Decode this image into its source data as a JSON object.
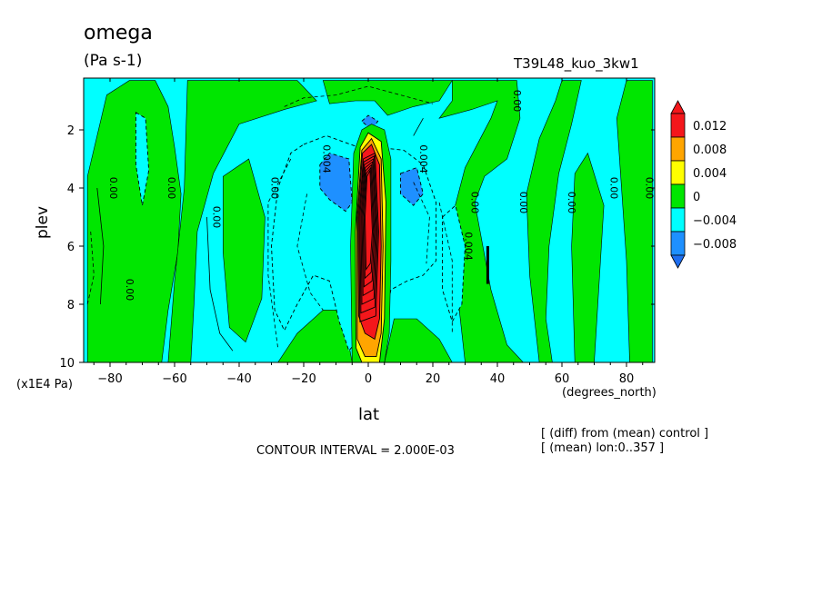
{
  "header": {
    "title": "omega",
    "units": "(Pa s-1)",
    "run_name": "T39L48_kuo_3kw1"
  },
  "footer": {
    "contour_interval": "CONTOUR INTERVAL = 2.000E-03",
    "note_diff": "[ (diff) from (mean) control ]",
    "note_mean": "[ (mean) lon:0..357 ]"
  },
  "chart_data": {
    "type": "heatmap",
    "title": "omega",
    "units": "(Pa s-1)",
    "xlabel": "lat",
    "xunits": "(degrees_north)",
    "ylabel": "plev",
    "yunits": "(x1E4 Pa)",
    "xlim": [
      -88,
      88
    ],
    "ylim": [
      10,
      0.3
    ],
    "y_inverted": true,
    "xticks": [
      -80,
      -60,
      -40,
      -20,
      0,
      20,
      40,
      60,
      80
    ],
    "xtick_labels": [
      "−80",
      "−60",
      "−40",
      "−20",
      "0",
      "20",
      "40",
      "60",
      "80"
    ],
    "yticks": [
      2,
      4,
      6,
      8,
      10
    ],
    "ytick_labels": [
      "2",
      "4",
      "6",
      "8",
      "10"
    ],
    "contour_interval": 0.002,
    "colorbar": {
      "levels": [
        {
          "label": "0.012",
          "color": "#f4171b"
        },
        {
          "label": "0.008",
          "color": "#ffa500"
        },
        {
          "label": "0.004",
          "color": "#ffff00"
        },
        {
          "label": "0",
          "color": "#00e600"
        },
        {
          "label": "−0.004",
          "color": "#00ffff"
        },
        {
          "label": "−0.008",
          "color": "#1e90ff"
        }
      ],
      "top_color": "#f4171b",
      "bottom_color": "#1e6ef0"
    },
    "background_color": "#00ffff",
    "regions": [
      {
        "kind": "positive",
        "level": 0,
        "pts": [
          [
            -87,
            3.6
          ],
          [
            -84,
            2.2
          ],
          [
            -81,
            0.8
          ],
          [
            -74,
            0.3
          ],
          [
            -66,
            0.3
          ],
          [
            -62,
            1.2
          ],
          [
            -60,
            2.6
          ],
          [
            -58,
            4.2
          ],
          [
            -59,
            6.2
          ],
          [
            -62,
            8.2
          ],
          [
            -64,
            10
          ],
          [
            -87,
            10
          ]
        ]
      },
      {
        "kind": "negative",
        "level": -0.004,
        "pts": [
          [
            -72,
            1.4
          ],
          [
            -69,
            1.6
          ],
          [
            -68,
            3.4
          ],
          [
            -70,
            4.6
          ],
          [
            -72,
            3.2
          ]
        ]
      },
      {
        "kind": "positive",
        "level": 0,
        "pts": [
          [
            -56,
            0.3
          ],
          [
            -22,
            0.3
          ],
          [
            -16,
            1.0
          ],
          [
            -26,
            1.3
          ],
          [
            -40,
            1.8
          ],
          [
            -48,
            3.5
          ],
          [
            -53,
            5.5
          ],
          [
            -54,
            8.0
          ],
          [
            -55,
            10
          ],
          [
            -62,
            10
          ],
          [
            -60,
            7.2
          ],
          [
            -57,
            4.0
          ]
        ]
      },
      {
        "kind": "positive",
        "level": 0,
        "pts": [
          [
            -45,
            3.6
          ],
          [
            -37,
            3.0
          ],
          [
            -32,
            5.0
          ],
          [
            -33,
            7.8
          ],
          [
            -38,
            9.3
          ],
          [
            -43,
            8.8
          ],
          [
            -45,
            6.2
          ]
        ]
      },
      {
        "kind": "positive",
        "level": 0,
        "pts": [
          [
            -28,
            10
          ],
          [
            -22,
            9.0
          ],
          [
            -14,
            8.2
          ],
          [
            -8,
            8.2
          ],
          [
            -5,
            10
          ]
        ]
      },
      {
        "kind": "positive",
        "level": 0,
        "pts": [
          [
            5,
            10
          ],
          [
            8,
            8.5
          ],
          [
            15,
            8.5
          ],
          [
            22,
            9.2
          ],
          [
            26,
            10
          ]
        ]
      },
      {
        "kind": "positive",
        "level": 0,
        "pts": [
          [
            -14,
            0.3
          ],
          [
            26,
            0.3
          ],
          [
            22,
            1.0
          ],
          [
            14,
            1.2
          ],
          [
            6,
            1.5
          ],
          [
            2,
            1.0
          ],
          [
            -4,
            1.0
          ],
          [
            -12,
            1.1
          ]
        ]
      },
      {
        "kind": "positive",
        "level": 0,
        "pts": [
          [
            26,
            0.3
          ],
          [
            46,
            0.3
          ],
          [
            47,
            1.6
          ],
          [
            43,
            3.0
          ],
          [
            36,
            3.6
          ],
          [
            33,
            4.5
          ],
          [
            38,
            7.5
          ],
          [
            43,
            9.4
          ],
          [
            48,
            10
          ],
          [
            53,
            10
          ],
          [
            50,
            7.0
          ],
          [
            49,
            4.2
          ],
          [
            53,
            2.3
          ],
          [
            58,
            1.0
          ],
          [
            60,
            0.3
          ],
          [
            66,
            0.3
          ],
          [
            63,
            1.8
          ],
          [
            59,
            3.5
          ],
          [
            56,
            6.0
          ],
          [
            55,
            8.5
          ],
          [
            57,
            10
          ],
          [
            30,
            10
          ],
          [
            27,
            7.0
          ],
          [
            26,
            5.0
          ],
          [
            30,
            3.3
          ],
          [
            38,
            1.6
          ],
          [
            40,
            1.0
          ],
          [
            32,
            1.3
          ],
          [
            22,
            1.6
          ],
          [
            26,
            1.0
          ]
        ]
      },
      {
        "kind": "positive",
        "level": 0,
        "pts": [
          [
            64,
            3.5
          ],
          [
            68,
            2.8
          ],
          [
            73,
            4.6
          ],
          [
            70,
            10
          ],
          [
            64,
            10
          ],
          [
            63,
            6.0
          ]
        ]
      },
      {
        "kind": "positive",
        "level": 0,
        "pts": [
          [
            77,
            1.6
          ],
          [
            80,
            0.3
          ],
          [
            88,
            0.3
          ],
          [
            88,
            10
          ],
          [
            81,
            10
          ],
          [
            80,
            6.5
          ]
        ]
      },
      {
        "kind": "negative",
        "level": -0.004,
        "pts": [
          [
            -20,
            2.5
          ],
          [
            -13,
            2.2
          ],
          [
            -3,
            2.6
          ],
          [
            -3,
            9.2
          ],
          [
            -6,
            9.6
          ],
          [
            -9,
            8.6
          ],
          [
            -12,
            7.2
          ],
          [
            -17,
            7.0
          ],
          [
            -22,
            8.0
          ],
          [
            -26,
            8.9
          ],
          [
            -29,
            8.2
          ],
          [
            -30,
            6.0
          ],
          [
            -28,
            4.0
          ],
          [
            -24,
            2.8
          ]
        ]
      },
      {
        "kind": "negative",
        "level": -0.004,
        "pts": [
          [
            3,
            2.6
          ],
          [
            11,
            2.7
          ],
          [
            17,
            3.2
          ],
          [
            21,
            4.5
          ],
          [
            21,
            6.5
          ],
          [
            17,
            7.0
          ],
          [
            12,
            7.2
          ],
          [
            7,
            7.5
          ],
          [
            4,
            9.2
          ],
          [
            3,
            6.0
          ]
        ]
      },
      {
        "kind": "negative",
        "level": -0.004,
        "pts": [
          [
            23,
            5.0
          ],
          [
            27,
            4.6
          ],
          [
            30,
            6.0
          ],
          [
            29,
            8.0
          ],
          [
            26,
            8.6
          ],
          [
            23,
            7.5
          ]
        ]
      },
      {
        "kind": "negative",
        "level": -0.008,
        "pts": [
          [
            -15,
            3.2
          ],
          [
            -12,
            2.8
          ],
          [
            -6,
            3.0
          ],
          [
            -5,
            4.5
          ],
          [
            -7,
            4.8
          ],
          [
            -12,
            4.4
          ],
          [
            -15,
            4.0
          ]
        ]
      },
      {
        "kind": "negative",
        "level": -0.008,
        "pts": [
          [
            -2,
            1.7
          ],
          [
            0,
            1.5
          ],
          [
            3,
            1.7
          ],
          [
            1,
            2.0
          ]
        ]
      },
      {
        "kind": "negative",
        "level": -0.008,
        "pts": [
          [
            10,
            3.5
          ],
          [
            15,
            3.3
          ],
          [
            17,
            4.2
          ],
          [
            14,
            4.6
          ],
          [
            10,
            4.2
          ]
        ]
      },
      {
        "kind": "positive",
        "level": 0,
        "pts": [
          [
            -5,
            10
          ],
          [
            -5.5,
            6.0
          ],
          [
            -4.5,
            2.8
          ],
          [
            -2,
            2.0
          ],
          [
            1,
            1.8
          ],
          [
            5,
            2.0
          ],
          [
            7,
            3.0
          ],
          [
            7,
            6.5
          ],
          [
            6.5,
            9.0
          ],
          [
            5,
            10
          ]
        ]
      },
      {
        "kind": "positive",
        "level": 0.004,
        "pts": [
          [
            -3.8,
            9.5
          ],
          [
            -4,
            5.5
          ],
          [
            -2.5,
            2.6
          ],
          [
            0,
            2.1
          ],
          [
            4,
            2.4
          ],
          [
            5.5,
            4.5
          ],
          [
            5,
            8.5
          ],
          [
            3.5,
            10
          ],
          [
            -2,
            10
          ]
        ]
      },
      {
        "kind": "positive",
        "level": 0.008,
        "pts": [
          [
            -3.4,
            9.2
          ],
          [
            -3.5,
            5.0
          ],
          [
            -2,
            2.7
          ],
          [
            1,
            2.3
          ],
          [
            4,
            3.0
          ],
          [
            4.6,
            6.0
          ],
          [
            4,
            9.0
          ],
          [
            2.5,
            9.8
          ],
          [
            -1,
            9.8
          ]
        ]
      },
      {
        "kind": "positive",
        "level": 0.012,
        "pts": [
          [
            -3,
            8.4
          ],
          [
            -3.2,
            5.0
          ],
          [
            -1.8,
            2.8
          ],
          [
            1,
            2.5
          ],
          [
            3.5,
            3.2
          ],
          [
            4,
            6.0
          ],
          [
            3.5,
            8.5
          ],
          [
            2,
            9.2
          ],
          [
            -1,
            9.0
          ]
        ]
      }
    ],
    "contour_lines": [
      {
        "style": "solid",
        "pts": [
          [
            -84,
            4.0
          ],
          [
            -82,
            6.0
          ],
          [
            -83,
            8.0
          ]
        ]
      },
      {
        "style": "solid",
        "pts": [
          [
            -50,
            5.0
          ],
          [
            -49,
            7.5
          ],
          [
            -46,
            9.0
          ],
          [
            -42,
            9.6
          ]
        ]
      },
      {
        "style": "dashed",
        "pts": [
          [
            -26,
            1.2
          ],
          [
            -20,
            0.9
          ],
          [
            -10,
            0.8
          ],
          [
            0,
            0.5
          ],
          [
            10,
            0.8
          ],
          [
            20,
            1.1
          ]
        ]
      },
      {
        "style": "dashed",
        "pts": [
          [
            -24,
            3.0
          ],
          [
            -31,
            4.5
          ],
          [
            -31,
            7.0
          ],
          [
            -28,
            9.5
          ]
        ]
      },
      {
        "style": "dashed",
        "pts": [
          [
            -19,
            4.2
          ],
          [
            -22,
            6.0
          ],
          [
            -18,
            7.6
          ],
          [
            -14,
            8.2
          ]
        ]
      },
      {
        "style": "dashed",
        "pts": [
          [
            14,
            3.8
          ],
          [
            19,
            5.0
          ],
          [
            18,
            6.6
          ]
        ]
      },
      {
        "style": "dashed",
        "pts": [
          [
            22,
            4.5
          ],
          [
            26,
            6.5
          ],
          [
            26,
            9.0
          ]
        ]
      },
      {
        "style": "solid",
        "pts": [
          [
            14,
            2.2
          ],
          [
            17,
            1.6
          ]
        ]
      },
      {
        "style": "dashed",
        "pts": [
          [
            -86,
            5.5
          ],
          [
            -85,
            7.0
          ],
          [
            -87,
            8.0
          ]
        ]
      },
      {
        "style": "solid",
        "pts": [
          [
            37,
            6.0
          ],
          [
            37,
            7.3
          ]
        ],
        "bold": true
      }
    ],
    "inline_labels": [
      {
        "text": "0.00",
        "lat": -80,
        "plev": 4.0
      },
      {
        "text": "0.00",
        "lat": -62,
        "plev": 4.0
      },
      {
        "text": "0.00",
        "lat": -48,
        "plev": 5.0
      },
      {
        "text": "0.00",
        "lat": -30,
        "plev": 4.0
      },
      {
        "text": "0.00",
        "lat": -75,
        "plev": 7.5
      },
      {
        "text": "0.004",
        "lat": -14,
        "plev": 3.0
      },
      {
        "text": "0.004",
        "lat": 16,
        "plev": 3.0
      },
      {
        "text": "0.004",
        "lat": 30,
        "plev": 6.0
      },
      {
        "text": "0.00",
        "lat": 32,
        "plev": 4.5
      },
      {
        "text": "0.00",
        "lat": 47,
        "plev": 4.5
      },
      {
        "text": "0.00",
        "lat": 62,
        "plev": 4.5
      },
      {
        "text": "0.00",
        "lat": 75,
        "plev": 4.0
      },
      {
        "text": "0.00",
        "lat": 86,
        "plev": 4.0
      },
      {
        "text": "0.00",
        "lat": 45,
        "plev": 1.0
      }
    ]
  }
}
